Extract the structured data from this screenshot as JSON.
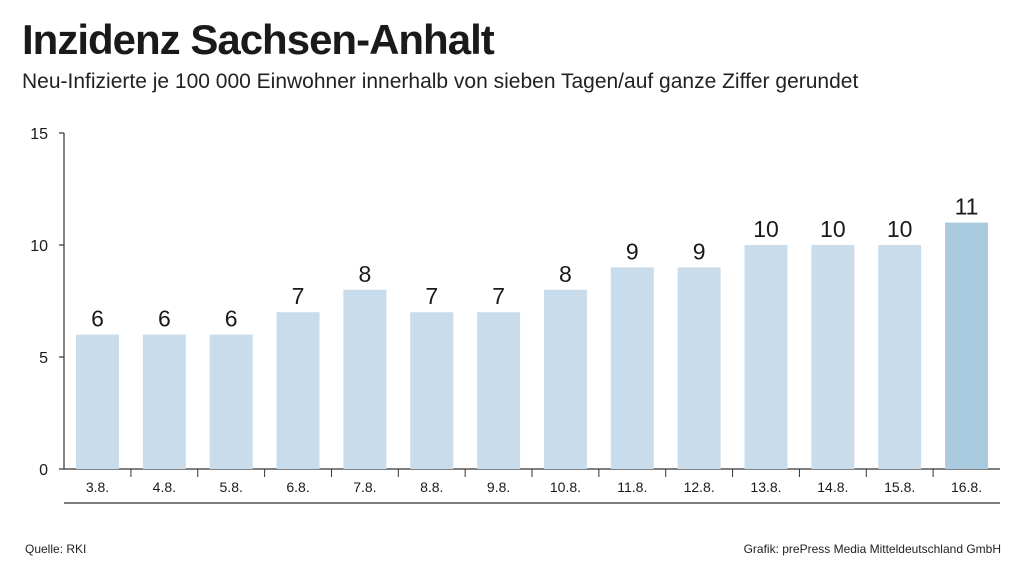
{
  "header": {
    "title": "Inzidenz Sachsen-Anhalt",
    "subtitle": "Neu-Infizierte je 100 000 Einwohner innerhalb von sieben Tagen/auf ganze Ziffer gerundet"
  },
  "footer": {
    "source": "Quelle: RKI",
    "credit": "Grafik: prePress Media Mitteldeutschland GmbH"
  },
  "chart_data": {
    "type": "bar",
    "categories": [
      "3.8.",
      "4.8.",
      "5.8.",
      "6.8.",
      "7.8.",
      "8.8.",
      "9.8.",
      "10.8.",
      "11.8.",
      "12.8.",
      "13.8.",
      "14.8.",
      "15.8.",
      "16.8."
    ],
    "values": [
      6,
      6,
      6,
      7,
      8,
      7,
      7,
      8,
      9,
      9,
      10,
      10,
      10,
      11
    ],
    "data_labels": [
      "6",
      "6",
      "6",
      "7",
      "8",
      "7",
      "7",
      "8",
      "9",
      "9",
      "10",
      "10",
      "10",
      "11"
    ],
    "ylim": [
      0,
      15
    ],
    "yticks": [
      0,
      5,
      10,
      15
    ],
    "ytick_labels": [
      "0",
      "5",
      "10",
      "15"
    ],
    "grid": false,
    "colors": {
      "bar": "#c9dceb",
      "highlight_bar": "#a9cadf",
      "axis": "#333333",
      "text": "#1a1a1a"
    },
    "highlight_index": 13
  }
}
